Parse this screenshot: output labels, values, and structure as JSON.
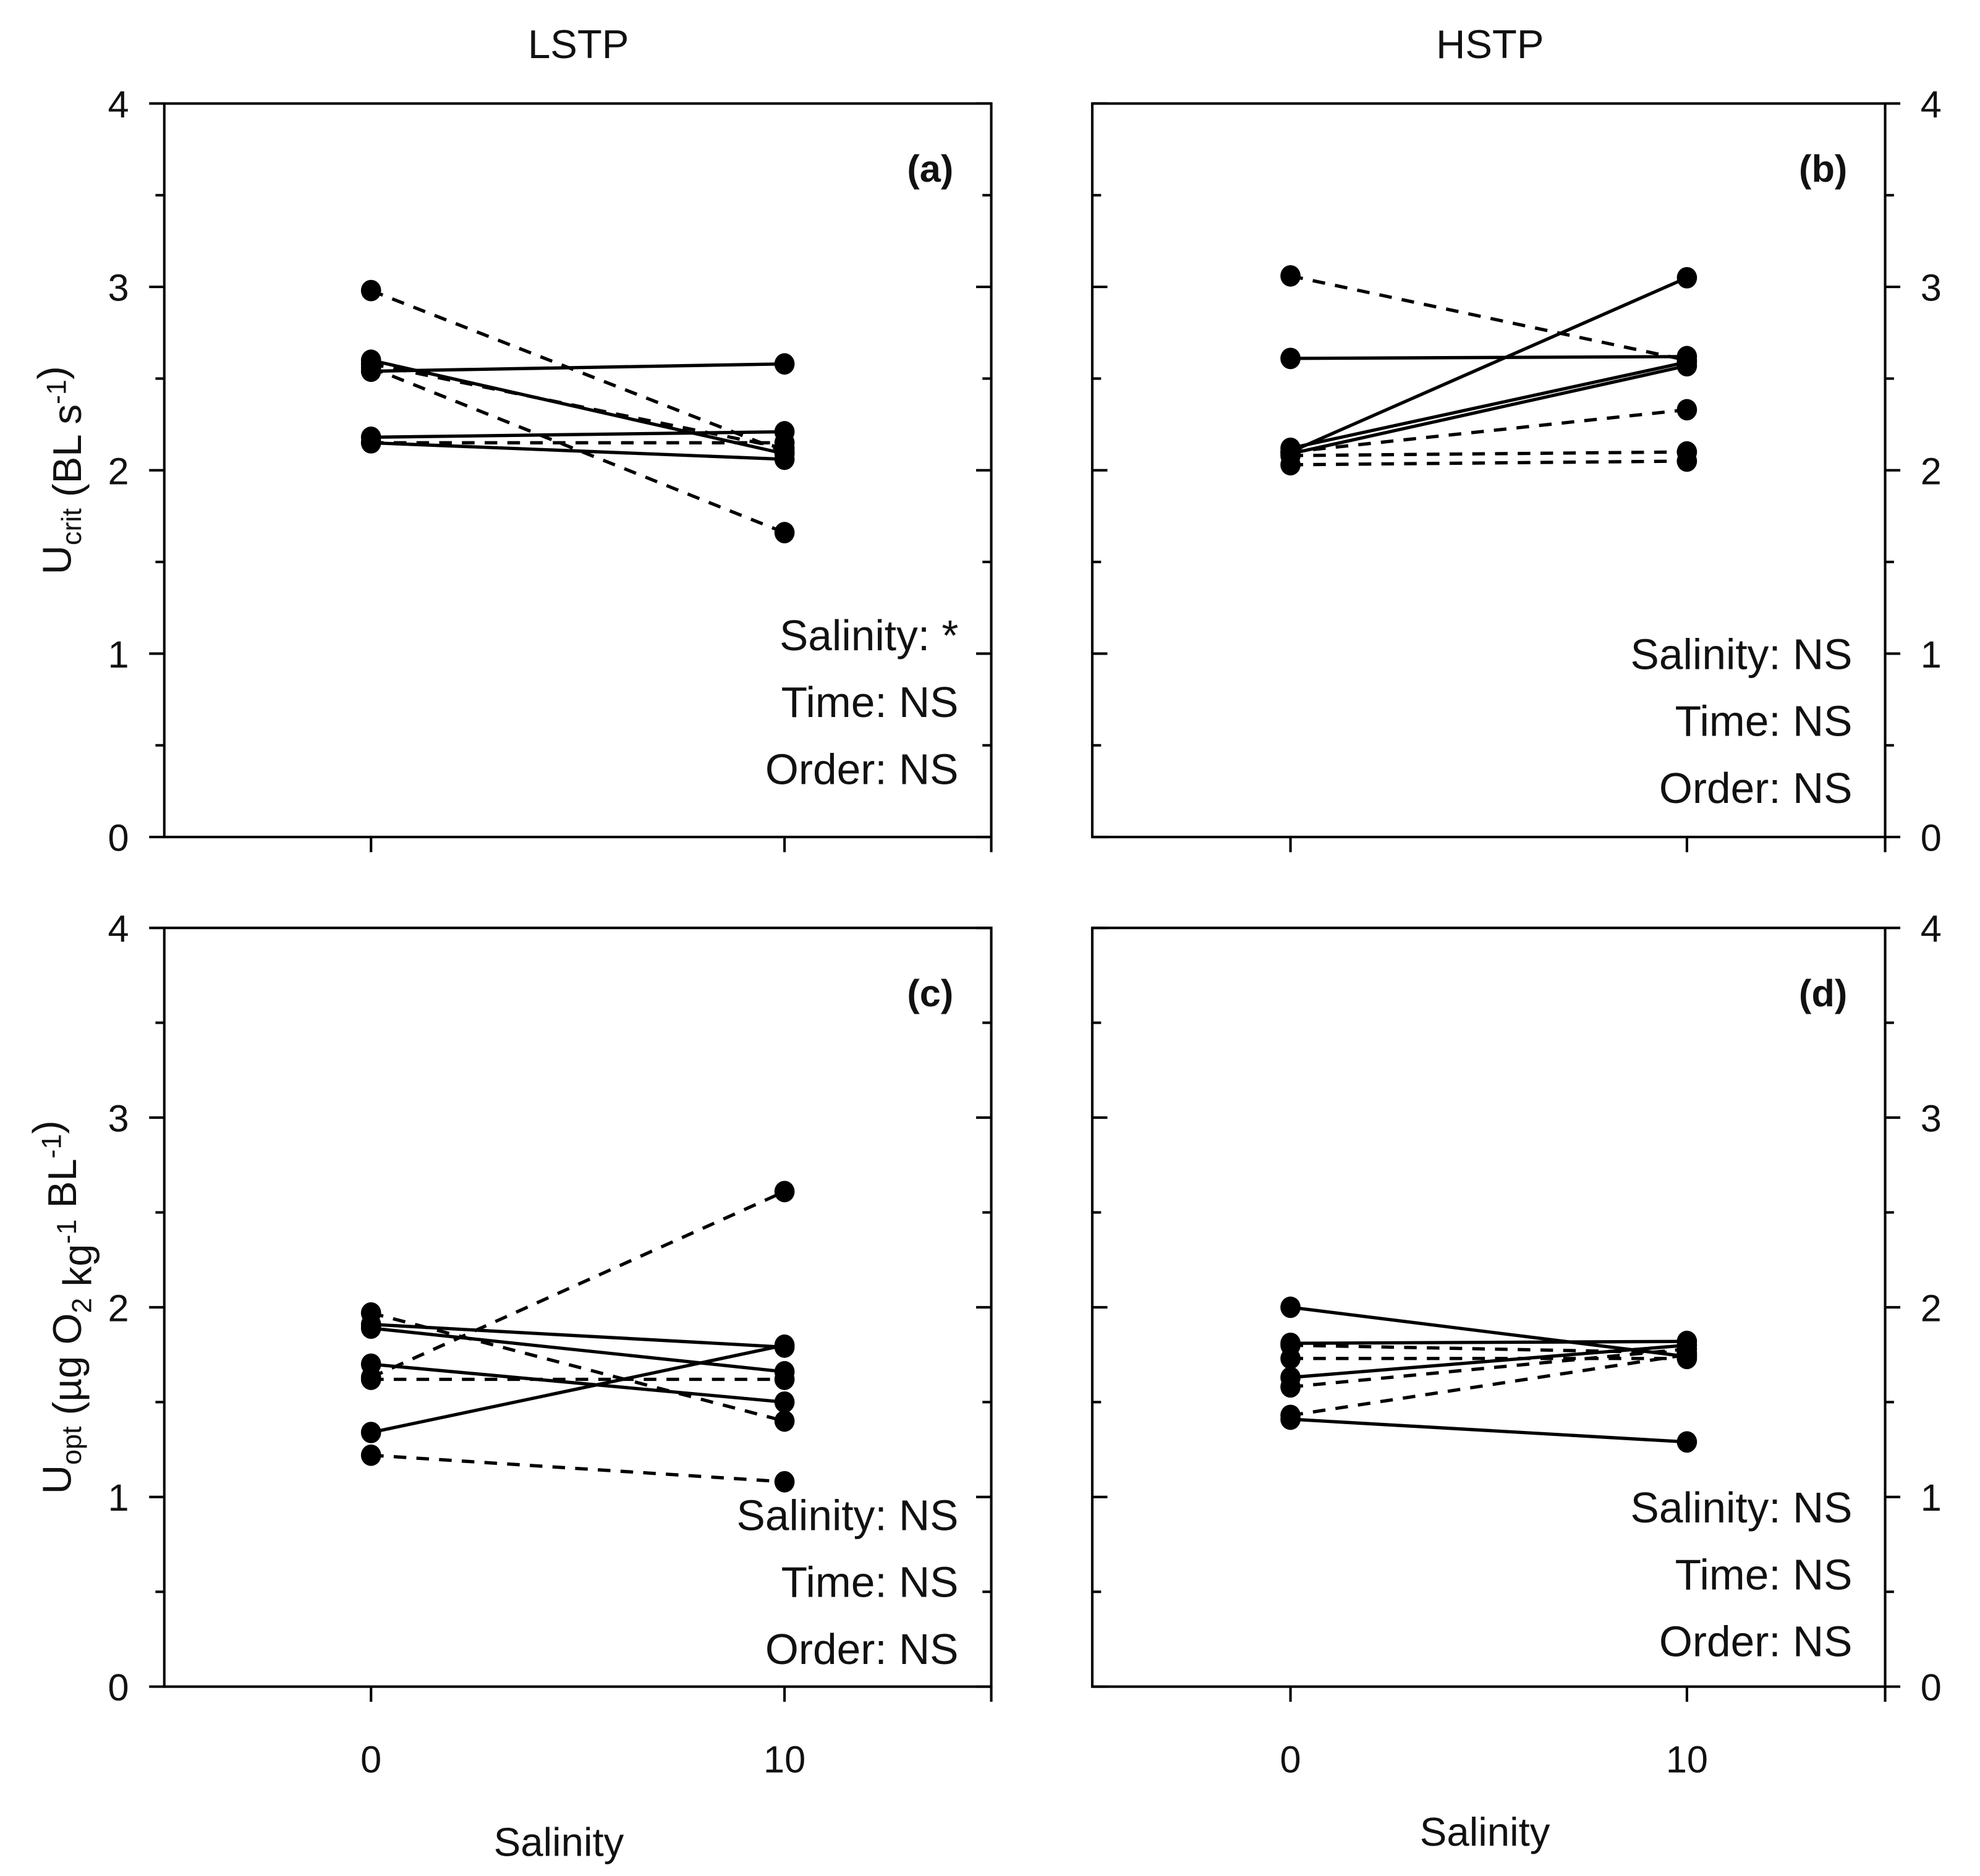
{
  "column_titles": [
    "LSTP",
    "HSTP"
  ],
  "chart_data": [
    {
      "type": "line",
      "panel_label": "(a)",
      "column": "LSTP",
      "ylabel_main": "U",
      "ylabel_sub": "crit",
      "ylabel_units": "(BL s",
      "ylabel_sup": "-1",
      "ylabel_close": ")",
      "xlabel": "",
      "x": [
        0,
        10
      ],
      "xlim": [
        -5,
        15
      ],
      "ylim": [
        0,
        4
      ],
      "yticks": [
        "0",
        "1",
        "2",
        "3",
        "4"
      ],
      "stats": [
        "Salinity: *",
        "Time: NS",
        "Order: NS"
      ],
      "series": [
        {
          "style": "dashed",
          "values": [
            2.98,
            2.1
          ]
        },
        {
          "style": "solid",
          "values": [
            2.54,
            2.58
          ]
        },
        {
          "style": "solid",
          "values": [
            2.6,
            2.09
          ]
        },
        {
          "style": "dashed",
          "values": [
            2.58,
            2.12
          ]
        },
        {
          "style": "dashed",
          "values": [
            2.56,
            1.66
          ]
        },
        {
          "style": "solid",
          "values": [
            2.18,
            2.21
          ]
        },
        {
          "style": "dashed",
          "values": [
            2.15,
            2.15
          ]
        },
        {
          "style": "solid",
          "values": [
            2.15,
            2.06
          ]
        }
      ]
    },
    {
      "type": "line",
      "panel_label": "(b)",
      "column": "HSTP",
      "xlabel": "",
      "x": [
        0,
        10
      ],
      "xlim": [
        -5,
        15
      ],
      "ylim": [
        0,
        4
      ],
      "yticks": [
        "0",
        "1",
        "2",
        "3",
        "4"
      ],
      "stats": [
        "Salinity: NS",
        "Time: NS",
        "Order: NS"
      ],
      "series": [
        {
          "style": "dashed",
          "values": [
            3.06,
            2.6
          ]
        },
        {
          "style": "solid",
          "values": [
            2.61,
            2.62
          ]
        },
        {
          "style": "solid",
          "values": [
            2.1,
            3.05
          ]
        },
        {
          "style": "solid",
          "values": [
            2.12,
            2.59
          ]
        },
        {
          "style": "solid",
          "values": [
            2.09,
            2.57
          ]
        },
        {
          "style": "dashed",
          "values": [
            2.1,
            2.33
          ]
        },
        {
          "style": "dashed",
          "values": [
            2.08,
            2.1
          ]
        },
        {
          "style": "dashed",
          "values": [
            2.03,
            2.05
          ]
        }
      ]
    },
    {
      "type": "line",
      "panel_label": "(c)",
      "column": "LSTP",
      "ylabel_main": "U",
      "ylabel_sub": "opt",
      "ylabel_units": "(µg O",
      "ylabel_sub2": "2",
      "ylabel_units2": " kg",
      "ylabel_sup": "-1",
      "ylabel_units3": " BL",
      "ylabel_sup2": "-1",
      "ylabel_close": ")",
      "xlabel": "Salinity",
      "x": [
        0,
        10
      ],
      "xtick_labels": [
        "0",
        "10"
      ],
      "xlim": [
        -5,
        15
      ],
      "ylim": [
        0,
        4
      ],
      "yticks": [
        "0",
        "1",
        "2",
        "3",
        "4"
      ],
      "stats": [
        "Salinity: NS",
        "Time: NS",
        "Order: NS"
      ],
      "series": [
        {
          "style": "dashed",
          "values": [
            1.63,
            2.61
          ]
        },
        {
          "style": "solid",
          "values": [
            1.91,
            1.79
          ]
        },
        {
          "style": "solid",
          "values": [
            1.89,
            1.66
          ]
        },
        {
          "style": "dashed",
          "values": [
            1.97,
            1.4
          ]
        },
        {
          "style": "solid",
          "values": [
            1.7,
            1.5
          ]
        },
        {
          "style": "dashed",
          "values": [
            1.62,
            1.62
          ]
        },
        {
          "style": "solid",
          "values": [
            1.34,
            1.8
          ]
        },
        {
          "style": "dashed",
          "values": [
            1.22,
            1.08
          ]
        }
      ]
    },
    {
      "type": "line",
      "panel_label": "(d)",
      "column": "HSTP",
      "xlabel": "Salinity",
      "x": [
        0,
        10
      ],
      "xtick_labels": [
        "0",
        "10"
      ],
      "xlim": [
        -5,
        15
      ],
      "ylim": [
        0,
        4
      ],
      "yticks": [
        "0",
        "1",
        "2",
        "3",
        "4"
      ],
      "stats": [
        "Salinity: NS",
        "Time: NS",
        "Order: NS"
      ],
      "series": [
        {
          "style": "solid",
          "values": [
            2.0,
            1.74
          ]
        },
        {
          "style": "solid",
          "values": [
            1.81,
            1.82
          ]
        },
        {
          "style": "dashed",
          "values": [
            1.8,
            1.76
          ]
        },
        {
          "style": "dashed",
          "values": [
            1.73,
            1.73
          ]
        },
        {
          "style": "solid",
          "values": [
            1.63,
            1.8
          ]
        },
        {
          "style": "dashed",
          "values": [
            1.58,
            1.78
          ]
        },
        {
          "style": "dashed",
          "values": [
            1.43,
            1.75
          ]
        },
        {
          "style": "solid",
          "values": [
            1.41,
            1.29
          ]
        }
      ]
    }
  ]
}
